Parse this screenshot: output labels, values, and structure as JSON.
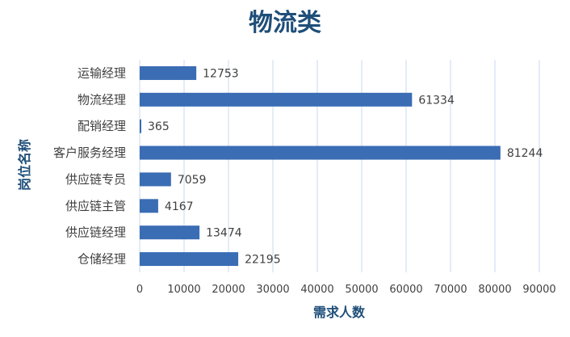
{
  "chart_data": {
    "type": "bar",
    "orientation": "horizontal",
    "title": "物流类",
    "xlabel": "需求人数",
    "ylabel": "岗位名称",
    "categories": [
      "运输经理",
      "物流经理",
      "配销经理",
      "客户服务经理",
      "供应链专员",
      "供应链主管",
      "供应链经理",
      "仓储经理"
    ],
    "values": [
      12753,
      61334,
      365,
      81244,
      7059,
      4167,
      13474,
      22195
    ],
    "xlim": [
      0,
      90000
    ],
    "xticks": [
      "0",
      "10000",
      "20000",
      "30000",
      "40000",
      "50000",
      "60000",
      "70000",
      "80000",
      "90000"
    ],
    "grid": true,
    "data_labels": true,
    "bar_color": "#3a6db4",
    "grid_color": "#c9d9ee",
    "title_color": "#1f4e79"
  }
}
